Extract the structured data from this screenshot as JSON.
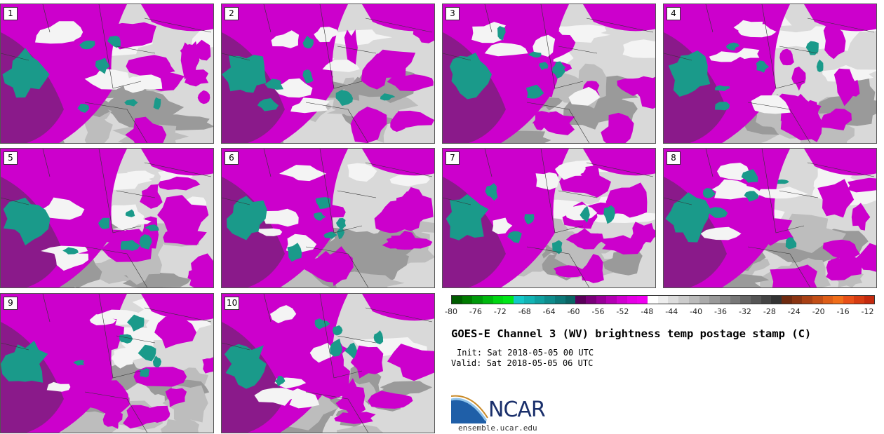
{
  "panels": [
    "1",
    "2",
    "3",
    "4",
    "5",
    "6",
    "7",
    "8",
    "9",
    "10"
  ],
  "colorbar": {
    "tick_labels": [
      "-80",
      "-76",
      "-72",
      "-68",
      "-64",
      "-60",
      "-56",
      "-52",
      "-48",
      "-44",
      "-40",
      "-36",
      "-32",
      "-28",
      "-24",
      "-20",
      "-16",
      "-12"
    ],
    "colors": [
      "#005c00",
      "#007a00",
      "#00990a",
      "#00b80e",
      "#00d612",
      "#00e619",
      "#14c8c8",
      "#12b4b4",
      "#10a0a0",
      "#0e8c8c",
      "#0c7878",
      "#0a6464",
      "#5a005a",
      "#7a007a",
      "#980098",
      "#b400b4",
      "#d000d0",
      "#e600e6",
      "#f000f0",
      "#ffffff",
      "#eeeeee",
      "#dddddd",
      "#cccccc",
      "#bbbbbb",
      "#aaaaaa",
      "#999999",
      "#888888",
      "#777777",
      "#666666",
      "#555555",
      "#444444",
      "#333333",
      "#6e2a10",
      "#8a3412",
      "#a84014",
      "#c24e16",
      "#de5e18",
      "#f06e1a",
      "#e85018",
      "#d63c12",
      "#c42a0e"
    ]
  },
  "title": "GOES-E Channel 3 (WV) brightness temp postage stamp (C)",
  "init": "Init: Sat 2018-05-05 00 UTC",
  "valid": "Valid: Sat 2018-05-05 06 UTC",
  "logo": {
    "text": "NCAR",
    "site": "ensemble.ucar.edu"
  },
  "field_colors": {
    "magenta": "#cc00cc",
    "dark_magenta": "#8a1a8a",
    "teal": "#1a9a8a",
    "gray": "#bdbdbd",
    "light_gray": "#d9d9d9",
    "dark_gray": "#9a9a9a",
    "white": "#f4f4f4"
  }
}
